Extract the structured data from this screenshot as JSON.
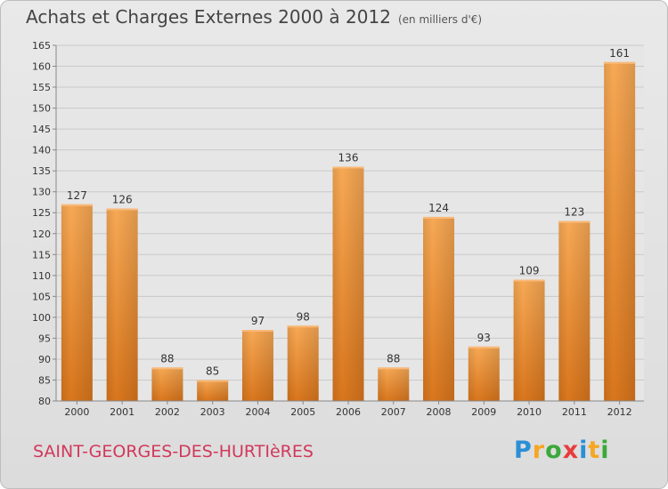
{
  "header": {
    "title": "Achats et Charges Externes 2000 à 2012",
    "unit": "(en milliers d'€)"
  },
  "footer": {
    "place": "SAINT-GEORGES-DES-HURTIèRES",
    "brand_letters": [
      "P",
      "r",
      "o",
      "x",
      "i",
      "t",
      "i"
    ],
    "brand_colors": [
      "#2a8fd6",
      "#f5a623",
      "#3aa93a",
      "#e83c3c",
      "#2a8fd6",
      "#f5a623",
      "#3aa93a"
    ]
  },
  "chart_data": {
    "type": "bar",
    "categories": [
      "2000",
      "2001",
      "2002",
      "2003",
      "2004",
      "2005",
      "2006",
      "2007",
      "2008",
      "2009",
      "2010",
      "2011",
      "2012"
    ],
    "values": [
      127,
      126,
      88,
      85,
      97,
      98,
      136,
      88,
      124,
      93,
      109,
      123,
      161
    ],
    "ylim": [
      80,
      165
    ],
    "yticks": [
      80,
      85,
      90,
      95,
      100,
      105,
      110,
      115,
      120,
      125,
      130,
      135,
      140,
      145,
      150,
      155,
      160,
      165
    ],
    "grid": true,
    "bar_color": "#f0902f"
  }
}
